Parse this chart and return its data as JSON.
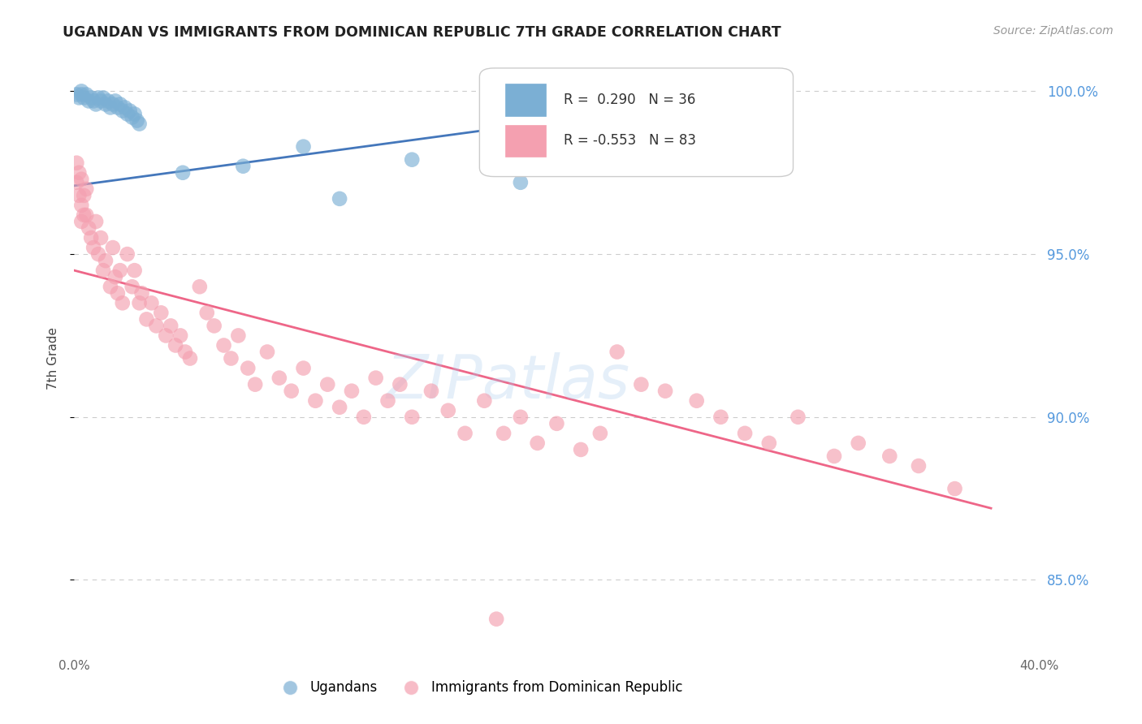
{
  "title": "UGANDAN VS IMMIGRANTS FROM DOMINICAN REPUBLIC 7TH GRADE CORRELATION CHART",
  "source": "Source: ZipAtlas.com",
  "ylabel": "7th Grade",
  "x_min": 0.0,
  "x_max": 0.4,
  "y_min": 0.828,
  "y_max": 1.008,
  "y_ticks": [
    0.85,
    0.9,
    0.95,
    1.0
  ],
  "y_tick_labels": [
    "85.0%",
    "90.0%",
    "95.0%",
    "100.0%"
  ],
  "x_ticks": [
    0.0,
    0.1,
    0.2,
    0.3,
    0.4
  ],
  "x_tick_labels": [
    "0.0%",
    "",
    "",
    "",
    "40.0%"
  ],
  "blue_R": 0.29,
  "blue_N": 36,
  "pink_R": -0.553,
  "pink_N": 83,
  "blue_color": "#7bafd4",
  "pink_color": "#f4a0b0",
  "blue_line_color": "#4477bb",
  "pink_line_color": "#ee6688",
  "legend_label_blue": "Ugandans",
  "legend_label_pink": "Immigrants from Dominican Republic",
  "blue_line_x0": 0.0,
  "blue_line_y0": 0.971,
  "blue_line_x1": 0.29,
  "blue_line_y1": 1.0,
  "pink_line_x0": 0.0,
  "pink_line_y0": 0.945,
  "pink_line_x1": 0.38,
  "pink_line_y1": 0.872
}
